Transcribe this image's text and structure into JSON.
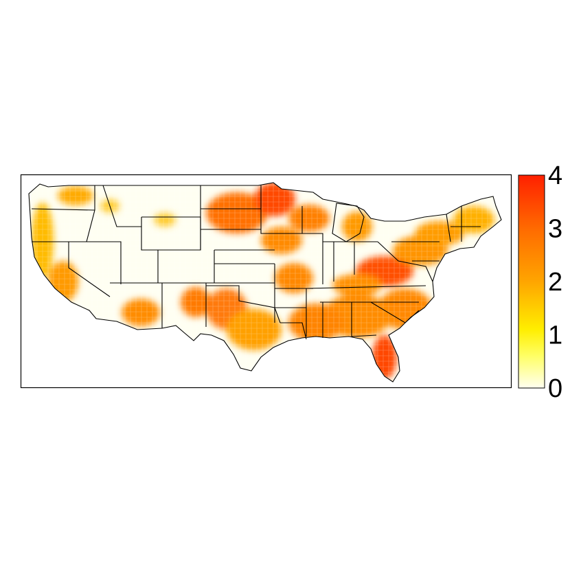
{
  "colorbar": {
    "ticks": [
      {
        "value": 0,
        "label": "0"
      },
      {
        "value": 1,
        "label": "1"
      },
      {
        "value": 2,
        "label": "2"
      },
      {
        "value": 3,
        "label": "3"
      },
      {
        "value": 4,
        "label": "4"
      }
    ],
    "range": [
      0,
      4
    ],
    "gradient_stops": [
      {
        "value": 0,
        "color": "#fffff0"
      },
      {
        "value": 0.6,
        "color": "#ffff66"
      },
      {
        "value": 1.1,
        "color": "#ffee00"
      },
      {
        "value": 2.0,
        "color": "#ffa500"
      },
      {
        "value": 3.0,
        "color": "#ff6a00"
      },
      {
        "value": 4.0,
        "color": "#ff2000"
      }
    ]
  },
  "map": {
    "region": "contiguous-us",
    "background_fill": "#fffff2",
    "border_color": "#000000"
  }
}
